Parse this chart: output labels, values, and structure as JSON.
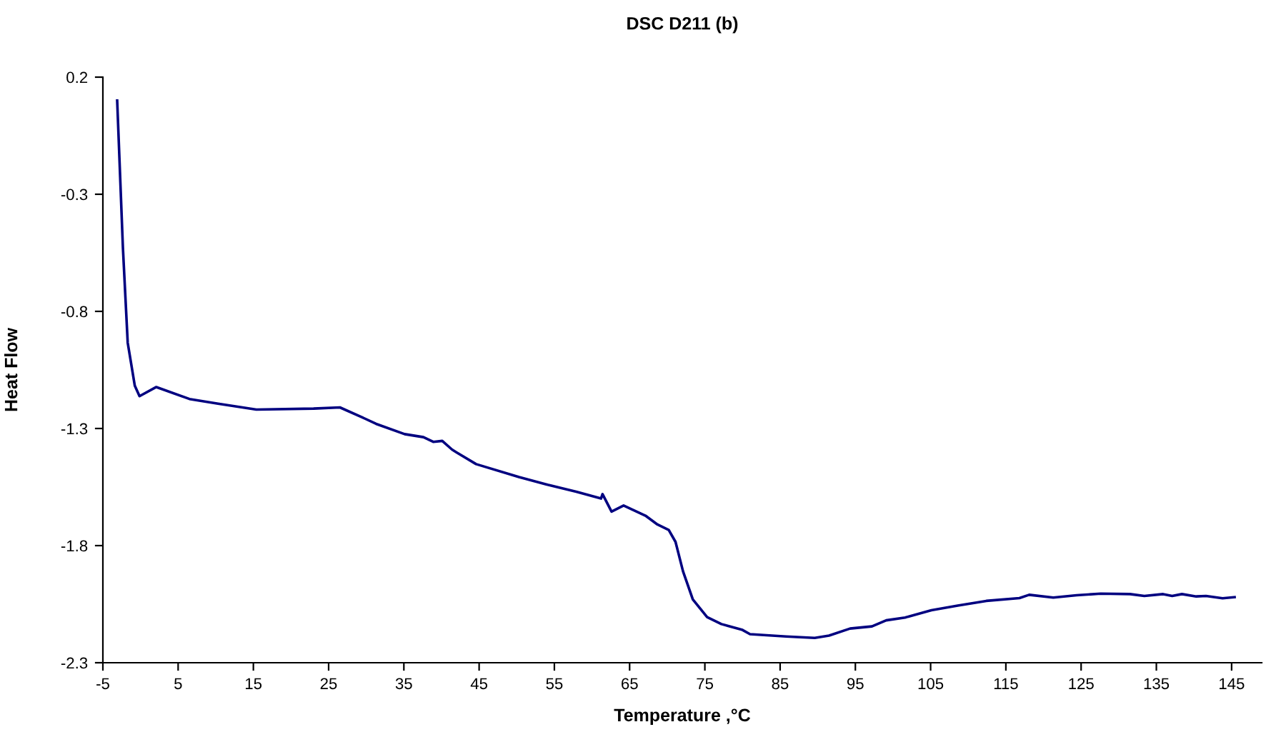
{
  "chart_data": {
    "type": "line",
    "title": "DSC D211 (b)",
    "xlabel": "Temperature ,°C",
    "ylabel": "Heat Flow",
    "xlim": [
      -5,
      149
    ],
    "xticks": [
      -5,
      5,
      15,
      25,
      35,
      45,
      55,
      65,
      75,
      85,
      95,
      105,
      115,
      125,
      135,
      145
    ],
    "ylim": [
      -2.3,
      0.2
    ],
    "yticks": [
      -2.3,
      -1.8,
      -1.3,
      -0.8,
      -0.3,
      0.2
    ],
    "grid": false,
    "legend": false,
    "marker": "none",
    "line_style": "solid",
    "series": [
      {
        "color": "#000080",
        "x": [
          -3.1,
          -2.34,
          -1.7,
          -0.76,
          -0.13,
          2.1,
          6.5,
          10.3,
          15.4,
          23,
          26.5,
          29.3,
          31.3,
          35.1,
          37.6,
          38.9,
          40.1,
          41.4,
          42.0,
          44.6,
          50.3,
          54.1,
          57.9,
          61.2,
          61.4,
          62.6,
          64.2,
          67.1,
          68.7,
          70.2,
          71.1,
          72.1,
          73.4,
          75.3,
          77.2,
          80,
          81,
          85.8,
          89.6,
          91.5,
          94.3,
          97.2,
          99.1,
          101.6,
          105.1,
          108.6,
          112.4,
          116.8,
          118.1,
          121.3,
          124.4,
          127.6,
          131.5,
          133.4,
          135.9,
          137.1,
          138.4,
          140.3,
          141.6,
          143.8,
          145.4
        ],
        "values": [
          0.1,
          -0.527,
          -0.934,
          -1.117,
          -1.162,
          -1.123,
          -1.174,
          -1.194,
          -1.219,
          -1.215,
          -1.21,
          -1.25,
          -1.28,
          -1.324,
          -1.337,
          -1.357,
          -1.353,
          -1.39,
          -1.402,
          -1.452,
          -1.507,
          -1.54,
          -1.57,
          -1.599,
          -1.58,
          -1.655,
          -1.629,
          -1.672,
          -1.71,
          -1.733,
          -1.784,
          -1.91,
          -2.03,
          -2.105,
          -2.135,
          -2.16,
          -2.178,
          -2.188,
          -2.194,
          -2.184,
          -2.154,
          -2.145,
          -2.119,
          -2.107,
          -2.076,
          -2.056,
          -2.036,
          -2.024,
          -2.01,
          -2.022,
          -2.012,
          -2.005,
          -2.007,
          -2.015,
          -2.007,
          -2.015,
          -2.007,
          -2.017,
          -2.015,
          -2.025,
          -2.02
        ]
      }
    ]
  }
}
